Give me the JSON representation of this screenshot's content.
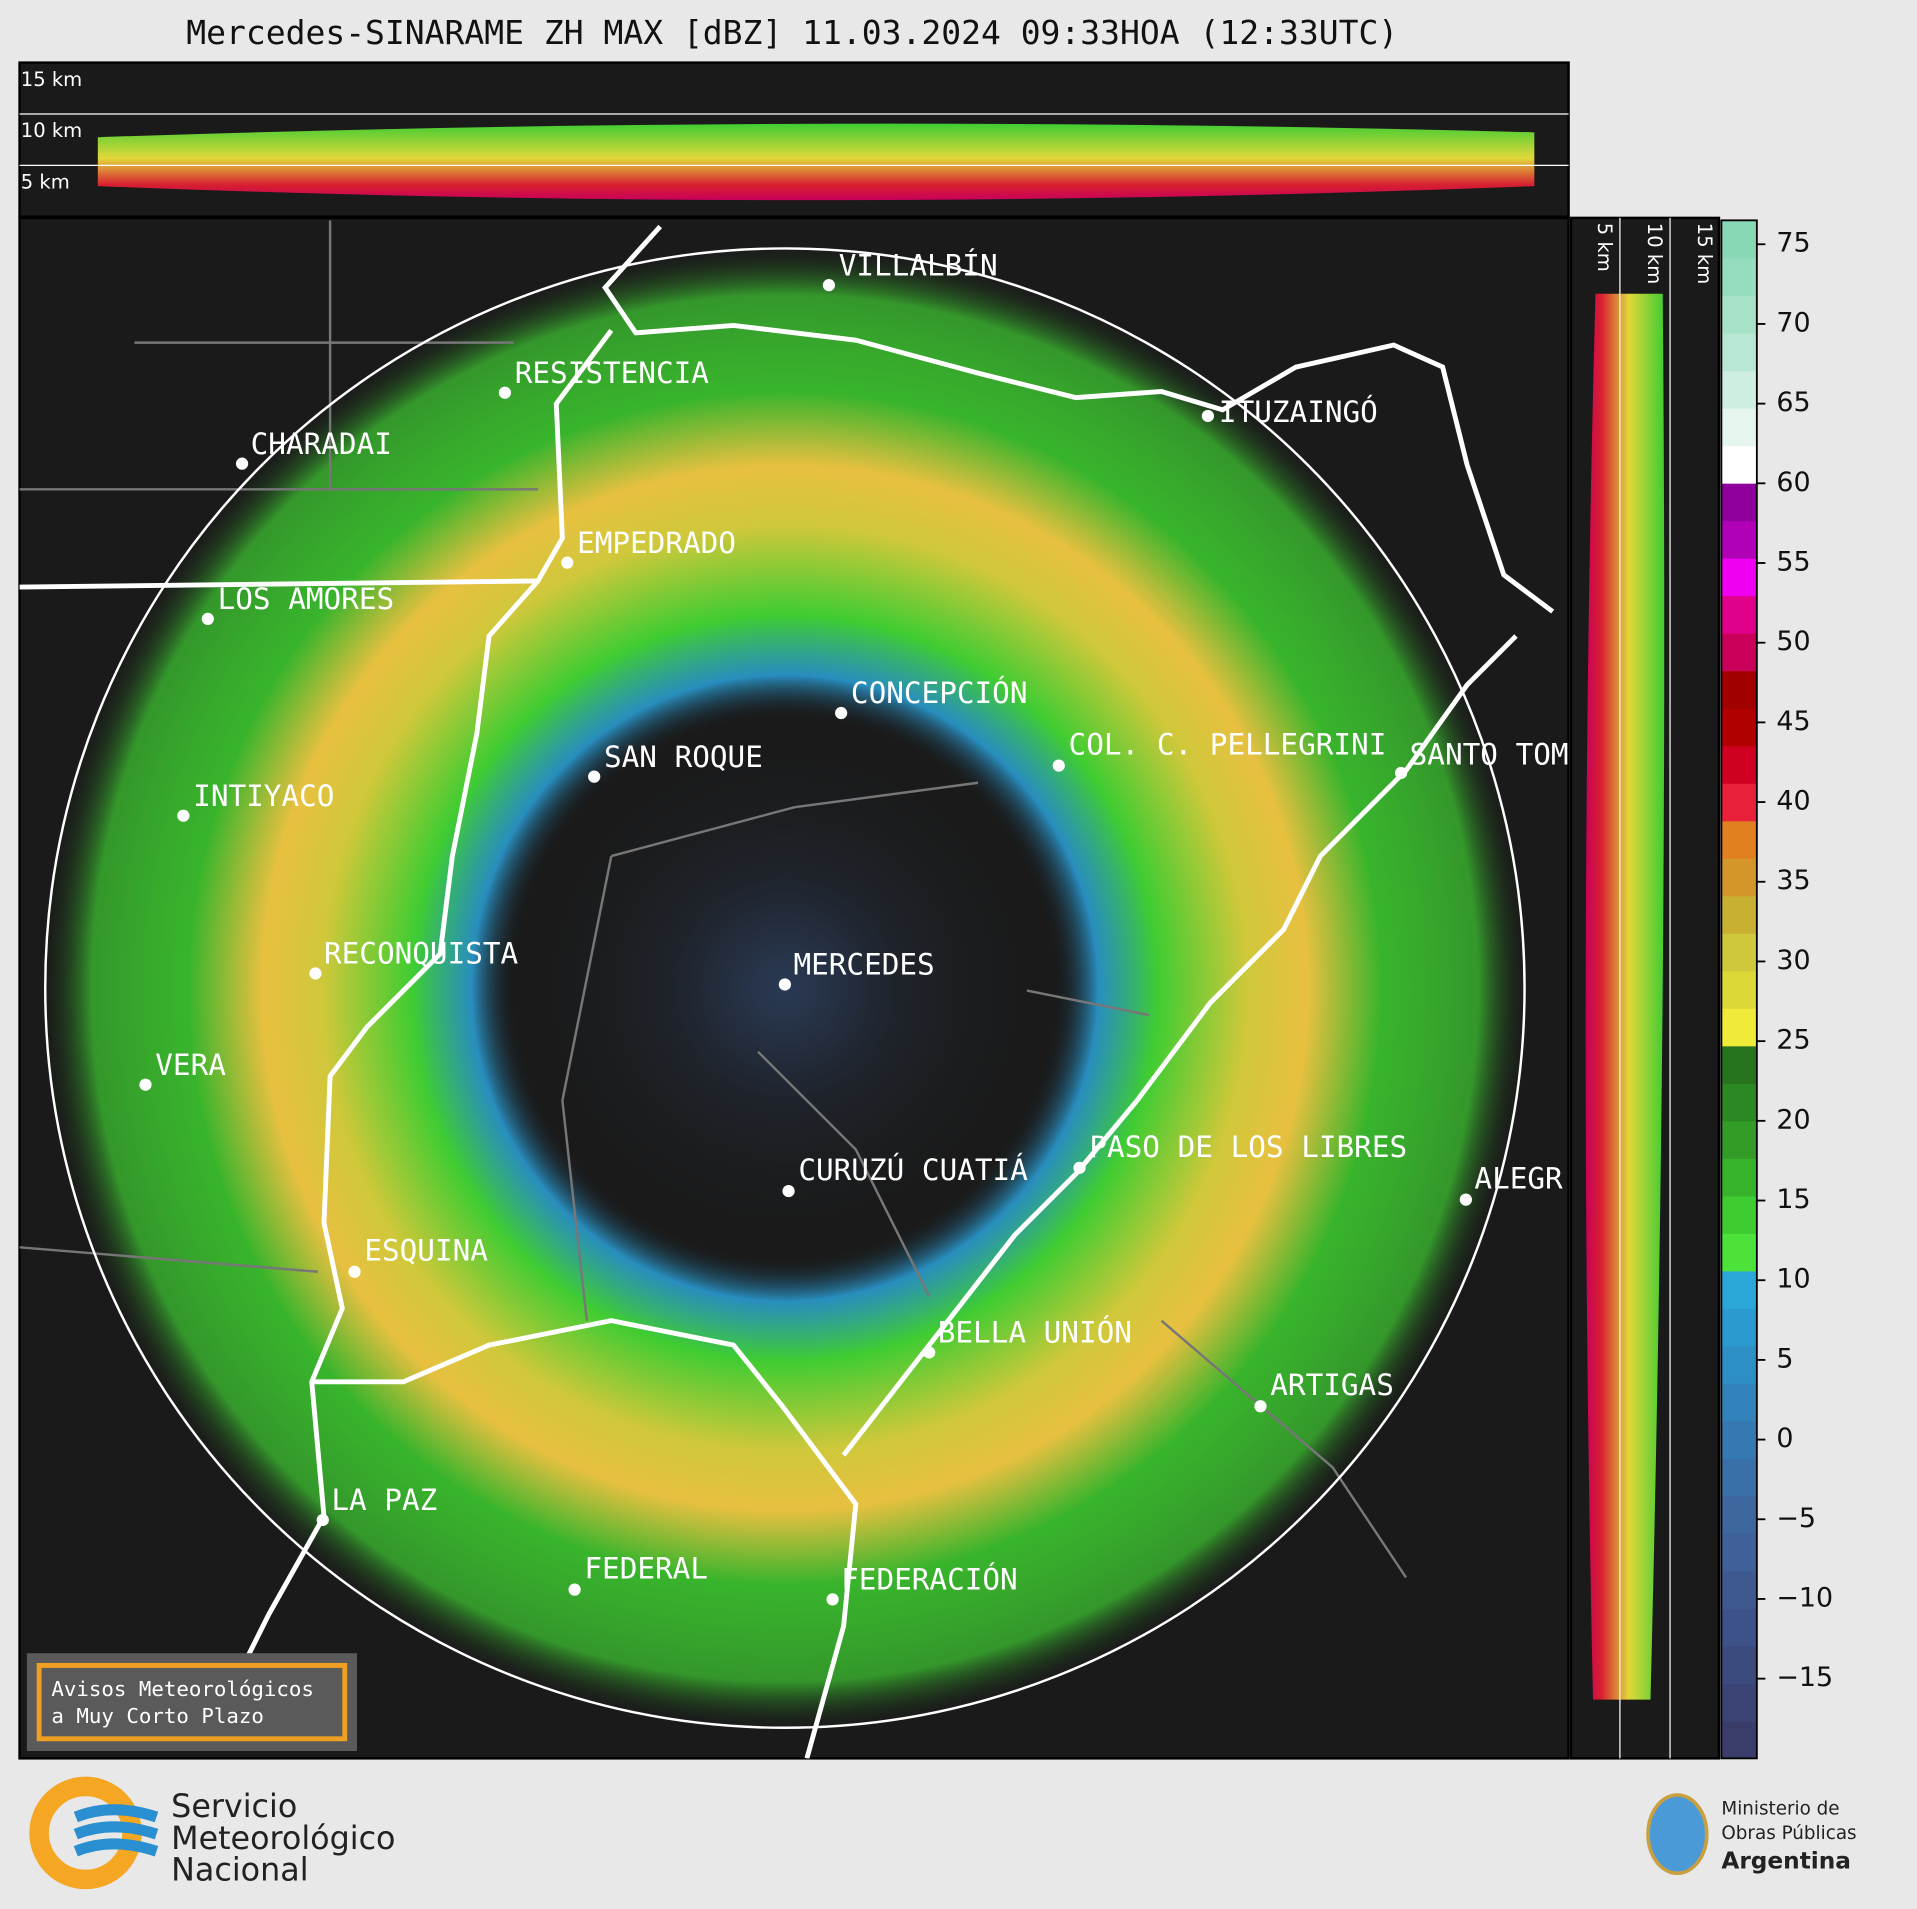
{
  "title": "Mercedes-SINARAME ZH MAX [dBZ] 11.03.2024 09:33HOA (12:33UTC)",
  "top_panel_labels": [
    "15 km",
    "10 km",
    "5 km"
  ],
  "side_panel_labels": [
    "5 km",
    "10 km",
    "15 km"
  ],
  "cities": [
    "VILLALBÍN",
    "RESISTENCIA",
    "CHARADAI",
    "EMPEDRADO",
    "LOS AMORES",
    "CONCEPCIÓN",
    "SAN ROQUE",
    "COL. C. PELLEGRINI",
    "SANTO TOM",
    "INTIYACO",
    "ITUZAINGÓ",
    "RECONQUISTA",
    "MERCEDES",
    "VERA",
    "PASO DE LOS LIBRES",
    "CURUZÚ CUATIÁ",
    "ALEGR",
    "ESQUINA",
    "BELLA UNIÓN",
    "ARTIGAS",
    "LA PAZ",
    "FEDERAL",
    "FEDERACIÓN"
  ],
  "warning_box": [
    "Avisos Meteorológicos",
    "a Muy Corto Plazo"
  ],
  "logo_left": [
    "Servicio",
    "Meteorológico",
    "Nacional"
  ],
  "logo_right": [
    "Ministerio de",
    "Obras Públicas",
    "Argentina"
  ],
  "colorbar": {
    "lim": [
      -20,
      76.5
    ],
    "ticks": [
      {
        "value": -15,
        "label": "−15"
      },
      {
        "value": -10,
        "label": "−10"
      },
      {
        "value": -5,
        "label": "−5"
      },
      0,
      5,
      10,
      15,
      20,
      25,
      30,
      35,
      40,
      45,
      50,
      55,
      60,
      65,
      70,
      75
    ],
    "colors": [
      "#3a3d6a",
      "#3b4474",
      "#3c4b7e",
      "#3d5288",
      "#3e5990",
      "#3f6098",
      "#3e67a0",
      "#3a70a8",
      "#3679b2",
      "#3283bc",
      "#2e8ec6",
      "#2a9ad0",
      "#2aa6d8",
      "#4ce23a",
      "#3fcc32",
      "#38b42c",
      "#329c26",
      "#2c8822",
      "#28741e",
      "#f0ea3a",
      "#dcd838",
      "#cfc83a",
      "#c8b032",
      "#d4962a",
      "#e08020",
      "#e8203a",
      "#d00020",
      "#b00000",
      "#a00000",
      "#c8005a",
      "#e0008a",
      "#f000f0",
      "#b000b8",
      "#90009a",
      "#ffffff",
      "#e6f6ee",
      "#cdeee0",
      "#b8e8d4",
      "#a6e2c8",
      "#96dcbe",
      "#88d8b6"
    ]
  }
}
